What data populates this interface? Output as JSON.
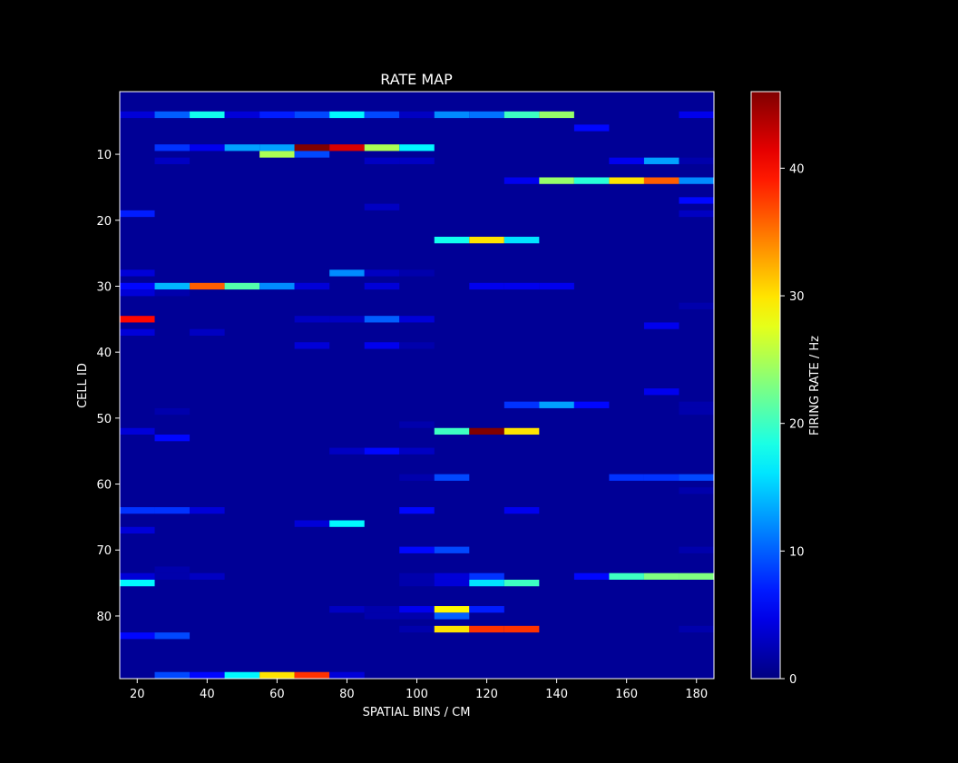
{
  "chart_data": {
    "type": "heatmap",
    "title": "RATE MAP",
    "xlabel": "SPATIAL BINS / CM",
    "ylabel": "CELL ID",
    "colorbar_label": "FIRING RATE / Hz",
    "colormap": "jet",
    "xlim": [
      15,
      185
    ],
    "ylim": [
      89,
      1
    ],
    "clim": [
      0,
      46
    ],
    "background_value": 1,
    "x_bin_width_cm": 10,
    "x_ticks": [
      20,
      40,
      60,
      80,
      100,
      120,
      140,
      160,
      180
    ],
    "y_ticks": [
      10,
      20,
      30,
      40,
      50,
      60,
      70,
      80
    ],
    "colorbar_ticks": [
      0,
      10,
      20,
      30,
      40
    ],
    "grid": false,
    "nonzero_cells": [
      {
        "cell": 4,
        "x": 20,
        "rate": 4
      },
      {
        "cell": 4,
        "x": 30,
        "rate": 10
      },
      {
        "cell": 4,
        "x": 40,
        "rate": 18
      },
      {
        "cell": 4,
        "x": 50,
        "rate": 4
      },
      {
        "cell": 4,
        "x": 60,
        "rate": 7
      },
      {
        "cell": 4,
        "x": 70,
        "rate": 9
      },
      {
        "cell": 4,
        "x": 80,
        "rate": 17
      },
      {
        "cell": 4,
        "x": 90,
        "rate": 9
      },
      {
        "cell": 4,
        "x": 100,
        "rate": 3
      },
      {
        "cell": 4,
        "x": 110,
        "rate": 12
      },
      {
        "cell": 4,
        "x": 120,
        "rate": 11
      },
      {
        "cell": 4,
        "x": 130,
        "rate": 20
      },
      {
        "cell": 4,
        "x": 140,
        "rate": 24
      },
      {
        "cell": 4,
        "x": 180,
        "rate": 5
      },
      {
        "cell": 6,
        "x": 150,
        "rate": 6
      },
      {
        "cell": 9,
        "x": 30,
        "rate": 8
      },
      {
        "cell": 9,
        "x": 40,
        "rate": 5
      },
      {
        "cell": 9,
        "x": 50,
        "rate": 13
      },
      {
        "cell": 9,
        "x": 60,
        "rate": 13
      },
      {
        "cell": 9,
        "x": 70,
        "rate": 46
      },
      {
        "cell": 9,
        "x": 80,
        "rate": 42
      },
      {
        "cell": 9,
        "x": 90,
        "rate": 25
      },
      {
        "cell": 9,
        "x": 100,
        "rate": 17
      },
      {
        "cell": 10,
        "x": 60,
        "rate": 25
      },
      {
        "cell": 10,
        "x": 70,
        "rate": 9
      },
      {
        "cell": 11,
        "x": 30,
        "rate": 3
      },
      {
        "cell": 11,
        "x": 90,
        "rate": 3
      },
      {
        "cell": 11,
        "x": 100,
        "rate": 3
      },
      {
        "cell": 11,
        "x": 160,
        "rate": 5
      },
      {
        "cell": 11,
        "x": 170,
        "rate": 13
      },
      {
        "cell": 11,
        "x": 180,
        "rate": 2
      },
      {
        "cell": 14,
        "x": 130,
        "rate": 5
      },
      {
        "cell": 14,
        "x": 140,
        "rate": 24
      },
      {
        "cell": 14,
        "x": 150,
        "rate": 19
      },
      {
        "cell": 14,
        "x": 160,
        "rate": 30
      },
      {
        "cell": 14,
        "x": 170,
        "rate": 36
      },
      {
        "cell": 14,
        "x": 180,
        "rate": 12
      },
      {
        "cell": 17,
        "x": 180,
        "rate": 6
      },
      {
        "cell": 18,
        "x": 90,
        "rate": 3
      },
      {
        "cell": 19,
        "x": 20,
        "rate": 7
      },
      {
        "cell": 19,
        "x": 180,
        "rate": 3
      },
      {
        "cell": 23,
        "x": 110,
        "rate": 18
      },
      {
        "cell": 23,
        "x": 120,
        "rate": 30
      },
      {
        "cell": 23,
        "x": 130,
        "rate": 16
      },
      {
        "cell": 28,
        "x": 20,
        "rate": 4
      },
      {
        "cell": 28,
        "x": 80,
        "rate": 12
      },
      {
        "cell": 28,
        "x": 90,
        "rate": 3
      },
      {
        "cell": 28,
        "x": 100,
        "rate": 2
      },
      {
        "cell": 30,
        "x": 20,
        "rate": 6
      },
      {
        "cell": 30,
        "x": 30,
        "rate": 14
      },
      {
        "cell": 30,
        "x": 40,
        "rate": 36
      },
      {
        "cell": 30,
        "x": 50,
        "rate": 21
      },
      {
        "cell": 30,
        "x": 60,
        "rate": 12
      },
      {
        "cell": 30,
        "x": 70,
        "rate": 4
      },
      {
        "cell": 30,
        "x": 90,
        "rate": 4
      },
      {
        "cell": 30,
        "x": 120,
        "rate": 5
      },
      {
        "cell": 30,
        "x": 130,
        "rate": 5
      },
      {
        "cell": 30,
        "x": 140,
        "rate": 5
      },
      {
        "cell": 31,
        "x": 20,
        "rate": 4
      },
      {
        "cell": 31,
        "x": 30,
        "rate": 2
      },
      {
        "cell": 33,
        "x": 180,
        "rate": 2
      },
      {
        "cell": 35,
        "x": 20,
        "rate": 40
      },
      {
        "cell": 35,
        "x": 70,
        "rate": 3
      },
      {
        "cell": 35,
        "x": 80,
        "rate": 3
      },
      {
        "cell": 35,
        "x": 90,
        "rate": 10
      },
      {
        "cell": 35,
        "x": 100,
        "rate": 4
      },
      {
        "cell": 36,
        "x": 170,
        "rate": 5
      },
      {
        "cell": 37,
        "x": 20,
        "rate": 4
      },
      {
        "cell": 37,
        "x": 40,
        "rate": 3
      },
      {
        "cell": 39,
        "x": 70,
        "rate": 4
      },
      {
        "cell": 39,
        "x": 90,
        "rate": 5
      },
      {
        "cell": 39,
        "x": 100,
        "rate": 2
      },
      {
        "cell": 46,
        "x": 170,
        "rate": 5
      },
      {
        "cell": 48,
        "x": 130,
        "rate": 8
      },
      {
        "cell": 48,
        "x": 140,
        "rate": 13
      },
      {
        "cell": 48,
        "x": 150,
        "rate": 6
      },
      {
        "cell": 48,
        "x": 180,
        "rate": 2
      },
      {
        "cell": 49,
        "x": 30,
        "rate": 2
      },
      {
        "cell": 49,
        "x": 180,
        "rate": 2
      },
      {
        "cell": 51,
        "x": 100,
        "rate": 2
      },
      {
        "cell": 52,
        "x": 20,
        "rate": 4
      },
      {
        "cell": 52,
        "x": 110,
        "rate": 20
      },
      {
        "cell": 52,
        "x": 120,
        "rate": 46
      },
      {
        "cell": 52,
        "x": 130,
        "rate": 30
      },
      {
        "cell": 53,
        "x": 30,
        "rate": 6
      },
      {
        "cell": 55,
        "x": 80,
        "rate": 3
      },
      {
        "cell": 55,
        "x": 90,
        "rate": 6
      },
      {
        "cell": 55,
        "x": 100,
        "rate": 3
      },
      {
        "cell": 59,
        "x": 100,
        "rate": 2
      },
      {
        "cell": 59,
        "x": 110,
        "rate": 9
      },
      {
        "cell": 59,
        "x": 160,
        "rate": 8
      },
      {
        "cell": 59,
        "x": 170,
        "rate": 8
      },
      {
        "cell": 59,
        "x": 180,
        "rate": 9
      },
      {
        "cell": 61,
        "x": 180,
        "rate": 2
      },
      {
        "cell": 64,
        "x": 20,
        "rate": 8
      },
      {
        "cell": 64,
        "x": 30,
        "rate": 8
      },
      {
        "cell": 64,
        "x": 40,
        "rate": 4
      },
      {
        "cell": 64,
        "x": 100,
        "rate": 6
      },
      {
        "cell": 64,
        "x": 130,
        "rate": 5
      },
      {
        "cell": 66,
        "x": 70,
        "rate": 4
      },
      {
        "cell": 66,
        "x": 80,
        "rate": 17
      },
      {
        "cell": 67,
        "x": 20,
        "rate": 4
      },
      {
        "cell": 70,
        "x": 100,
        "rate": 6
      },
      {
        "cell": 70,
        "x": 110,
        "rate": 9
      },
      {
        "cell": 70,
        "x": 180,
        "rate": 2
      },
      {
        "cell": 73,
        "x": 30,
        "rate": 2
      },
      {
        "cell": 74,
        "x": 20,
        "rate": 4
      },
      {
        "cell": 74,
        "x": 30,
        "rate": 2
      },
      {
        "cell": 74,
        "x": 40,
        "rate": 3
      },
      {
        "cell": 74,
        "x": 100,
        "rate": 2
      },
      {
        "cell": 74,
        "x": 110,
        "rate": 4
      },
      {
        "cell": 74,
        "x": 120,
        "rate": 8
      },
      {
        "cell": 74,
        "x": 150,
        "rate": 6
      },
      {
        "cell": 74,
        "x": 160,
        "rate": 20
      },
      {
        "cell": 74,
        "x": 170,
        "rate": 23
      },
      {
        "cell": 74,
        "x": 180,
        "rate": 23
      },
      {
        "cell": 75,
        "x": 20,
        "rate": 17
      },
      {
        "cell": 75,
        "x": 100,
        "rate": 2
      },
      {
        "cell": 75,
        "x": 110,
        "rate": 4
      },
      {
        "cell": 75,
        "x": 120,
        "rate": 16
      },
      {
        "cell": 75,
        "x": 130,
        "rate": 20
      },
      {
        "cell": 79,
        "x": 80,
        "rate": 3
      },
      {
        "cell": 79,
        "x": 90,
        "rate": 2
      },
      {
        "cell": 79,
        "x": 100,
        "rate": 5
      },
      {
        "cell": 79,
        "x": 110,
        "rate": 29
      },
      {
        "cell": 79,
        "x": 120,
        "rate": 7
      },
      {
        "cell": 80,
        "x": 90,
        "rate": 2
      },
      {
        "cell": 80,
        "x": 100,
        "rate": 2
      },
      {
        "cell": 80,
        "x": 110,
        "rate": 10
      },
      {
        "cell": 82,
        "x": 100,
        "rate": 2
      },
      {
        "cell": 82,
        "x": 110,
        "rate": 30
      },
      {
        "cell": 82,
        "x": 120,
        "rate": 38
      },
      {
        "cell": 82,
        "x": 130,
        "rate": 38
      },
      {
        "cell": 82,
        "x": 180,
        "rate": 2
      },
      {
        "cell": 83,
        "x": 20,
        "rate": 6
      },
      {
        "cell": 83,
        "x": 30,
        "rate": 9
      },
      {
        "cell": 89,
        "x": 30,
        "rate": 9
      },
      {
        "cell": 89,
        "x": 40,
        "rate": 6
      },
      {
        "cell": 89,
        "x": 50,
        "rate": 17
      },
      {
        "cell": 89,
        "x": 60,
        "rate": 30
      },
      {
        "cell": 89,
        "x": 70,
        "rate": 38
      },
      {
        "cell": 89,
        "x": 80,
        "rate": 4
      }
    ]
  }
}
